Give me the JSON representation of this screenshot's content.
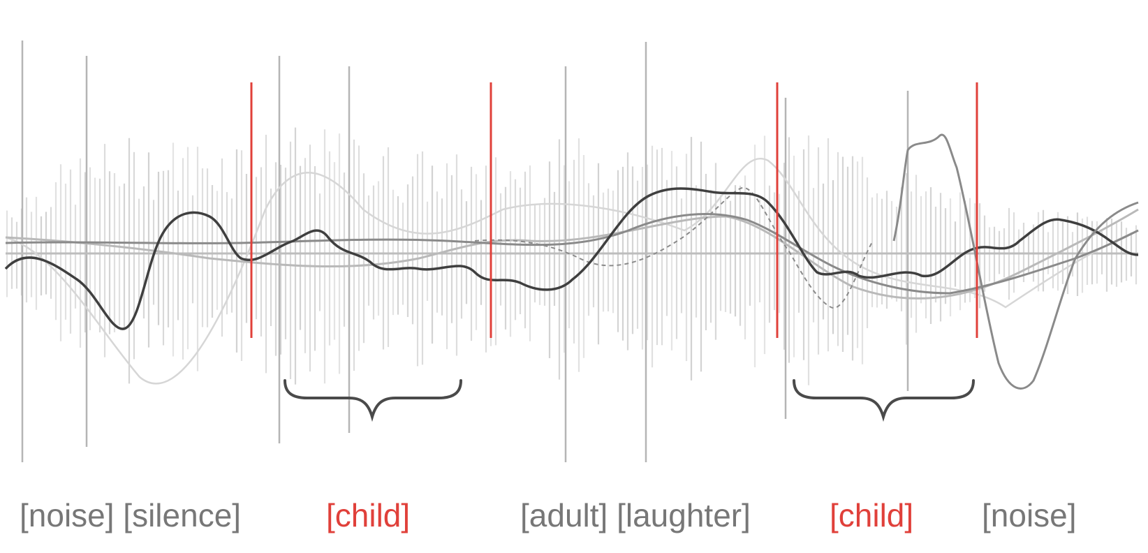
{
  "labels": [
    {
      "text": "[noise] [silence]",
      "color": "#777777"
    },
    {
      "text": "[child]",
      "color": "#e0403a"
    },
    {
      "text": "[adult] [laughter]",
      "color": "#777777"
    },
    {
      "text": "[child]",
      "color": "#e0403a"
    },
    {
      "text": "[noise]",
      "color": "#777777"
    }
  ],
  "colors": {
    "background": "#ffffff",
    "waveform_bars": "#cfcfcf",
    "waveform_strong": "#b5b5b5",
    "boundary": "#e0403a",
    "brace": "#4a4a4a",
    "curve_dark": "#3f3f3f",
    "curve_mid": "#8a8a8a",
    "curve_light": "#b9b9b9",
    "curve_faint": "#d6d6d6",
    "center_line": "#bdbdbd"
  },
  "segments": {
    "boundary_count": 4,
    "child_segments": 2
  }
}
